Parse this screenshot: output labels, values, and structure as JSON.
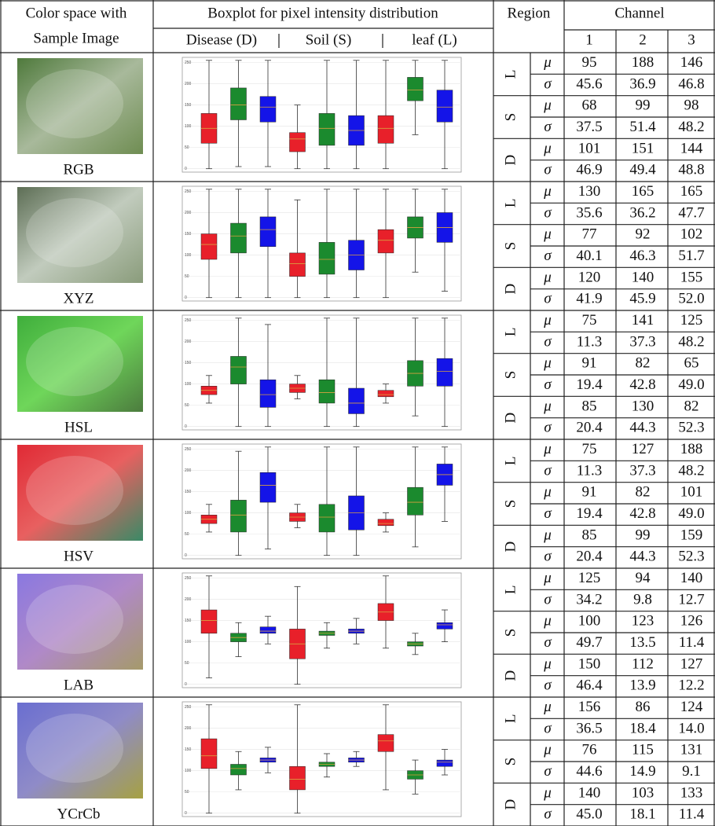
{
  "header": {
    "col1": [
      "Color space with",
      "Sample Image"
    ],
    "boxplot_title": "Boxplot for pixel intensity distribution",
    "boxplot_groups": [
      "Disease (D)",
      "Soil (S)",
      "leaf (L)"
    ],
    "region": "Region",
    "channel": "Channel",
    "channels": [
      "1",
      "2",
      "3"
    ]
  },
  "symbols": {
    "mu": "μ",
    "sigma": "σ"
  },
  "boxplot_ylim": [
    -8,
    262
  ],
  "boxplot_yticks": [
    0,
    50,
    100,
    150,
    200,
    250
  ],
  "box_colors": [
    "#e8202a",
    "#1b8a2e",
    "#1414e8"
  ],
  "rows": [
    {
      "name": "RGB",
      "regions": [
        {
          "label": "L",
          "mu": [
            "95",
            "188",
            "146"
          ],
          "sigma": [
            "45.6",
            "36.9",
            "46.8"
          ]
        },
        {
          "label": "S",
          "mu": [
            "68",
            "99",
            "98"
          ],
          "sigma": [
            "37.5",
            "51.4",
            "48.2"
          ]
        },
        {
          "label": "D",
          "mu": [
            "101",
            "151",
            "144"
          ],
          "sigma": [
            "46.9",
            "49.4",
            "48.8"
          ]
        }
      ],
      "boxes": [
        [
          0,
          60,
          95,
          130,
          255
        ],
        [
          5,
          115,
          150,
          190,
          255
        ],
        [
          5,
          110,
          145,
          170,
          255
        ],
        [
          0,
          40,
          70,
          85,
          150
        ],
        [
          0,
          55,
          95,
          130,
          255
        ],
        [
          0,
          55,
          90,
          125,
          255
        ],
        [
          0,
          60,
          95,
          125,
          255
        ],
        [
          80,
          160,
          185,
          215,
          255
        ],
        [
          0,
          110,
          145,
          185,
          255
        ]
      ]
    },
    {
      "name": "XYZ",
      "regions": [
        {
          "label": "L",
          "mu": [
            "130",
            "165",
            "165"
          ],
          "sigma": [
            "35.6",
            "36.2",
            "47.7"
          ]
        },
        {
          "label": "S",
          "mu": [
            "77",
            "92",
            "102"
          ],
          "sigma": [
            "40.1",
            "46.3",
            "51.7"
          ]
        },
        {
          "label": "D",
          "mu": [
            "120",
            "140",
            "155"
          ],
          "sigma": [
            "41.9",
            "45.9",
            "52.0"
          ]
        }
      ],
      "boxes": [
        [
          0,
          90,
          125,
          150,
          255
        ],
        [
          0,
          105,
          145,
          175,
          255
        ],
        [
          0,
          120,
          160,
          190,
          255
        ],
        [
          0,
          50,
          80,
          105,
          230
        ],
        [
          0,
          55,
          90,
          130,
          255
        ],
        [
          0,
          65,
          100,
          135,
          255
        ],
        [
          0,
          105,
          135,
          160,
          255
        ],
        [
          60,
          140,
          165,
          190,
          255
        ],
        [
          15,
          130,
          165,
          200,
          255
        ]
      ]
    },
    {
      "name": "HSL",
      "regions": [
        {
          "label": "L",
          "mu": [
            "75",
            "141",
            "125"
          ],
          "sigma": [
            "11.3",
            "37.3",
            "48.2"
          ]
        },
        {
          "label": "S",
          "mu": [
            "91",
            "82",
            "65"
          ],
          "sigma": [
            "19.4",
            "42.8",
            "49.0"
          ]
        },
        {
          "label": "D",
          "mu": [
            "85",
            "130",
            "82"
          ],
          "sigma": [
            "20.4",
            "44.3",
            "52.3"
          ]
        }
      ],
      "boxes": [
        [
          55,
          75,
          85,
          95,
          120
        ],
        [
          0,
          100,
          140,
          165,
          255
        ],
        [
          0,
          45,
          75,
          110,
          240
        ],
        [
          65,
          80,
          90,
          100,
          120
        ],
        [
          0,
          55,
          80,
          110,
          255
        ],
        [
          0,
          30,
          55,
          90,
          255
        ],
        [
          55,
          70,
          75,
          85,
          100
        ],
        [
          25,
          95,
          125,
          155,
          255
        ],
        [
          0,
          95,
          130,
          160,
          255
        ]
      ]
    },
    {
      "name": "HSV",
      "regions": [
        {
          "label": "L",
          "mu": [
            "75",
            "127",
            "188"
          ],
          "sigma": [
            "11.3",
            "37.3",
            "48.2"
          ]
        },
        {
          "label": "S",
          "mu": [
            "91",
            "82",
            "101"
          ],
          "sigma": [
            "19.4",
            "42.8",
            "49.0"
          ]
        },
        {
          "label": "D",
          "mu": [
            "85",
            "99",
            "159"
          ],
          "sigma": [
            "20.4",
            "44.3",
            "52.3"
          ]
        }
      ],
      "boxes": [
        [
          55,
          75,
          85,
          95,
          120
        ],
        [
          0,
          55,
          95,
          130,
          245
        ],
        [
          15,
          125,
          165,
          195,
          255
        ],
        [
          65,
          80,
          90,
          100,
          120
        ],
        [
          0,
          55,
          90,
          120,
          255
        ],
        [
          0,
          60,
          100,
          140,
          255
        ],
        [
          55,
          70,
          75,
          85,
          100
        ],
        [
          20,
          95,
          125,
          160,
          255
        ],
        [
          80,
          165,
          190,
          215,
          255
        ]
      ]
    },
    {
      "name": "LAB",
      "regions": [
        {
          "label": "L",
          "mu": [
            "125",
            "94",
            "140"
          ],
          "sigma": [
            "34.2",
            "9.8",
            "12.7"
          ]
        },
        {
          "label": "S",
          "mu": [
            "100",
            "123",
            "126"
          ],
          "sigma": [
            "49.7",
            "13.5",
            "11.4"
          ]
        },
        {
          "label": "D",
          "mu": [
            "150",
            "112",
            "127"
          ],
          "sigma": [
            "46.4",
            "13.9",
            "12.2"
          ]
        }
      ],
      "boxes": [
        [
          15,
          120,
          150,
          175,
          255
        ],
        [
          65,
          100,
          110,
          120,
          145
        ],
        [
          95,
          120,
          125,
          135,
          160
        ],
        [
          0,
          60,
          95,
          130,
          230
        ],
        [
          85,
          115,
          120,
          125,
          145
        ],
        [
          95,
          120,
          125,
          130,
          155
        ],
        [
          85,
          150,
          170,
          190,
          255
        ],
        [
          70,
          90,
          95,
          100,
          120
        ],
        [
          100,
          130,
          140,
          145,
          175
        ]
      ]
    },
    {
      "name": "YCrCb",
      "regions": [
        {
          "label": "L",
          "mu": [
            "156",
            "86",
            "124"
          ],
          "sigma": [
            "36.5",
            "18.4",
            "14.0"
          ]
        },
        {
          "label": "S",
          "mu": [
            "76",
            "115",
            "131"
          ],
          "sigma": [
            "44.6",
            "14.9",
            "9.1"
          ]
        },
        {
          "label": "D",
          "mu": [
            "140",
            "103",
            "133"
          ],
          "sigma": [
            "45.0",
            "18.1",
            "11.4"
          ]
        }
      ],
      "boxes": [
        [
          0,
          105,
          135,
          175,
          255
        ],
        [
          55,
          90,
          105,
          115,
          145
        ],
        [
          95,
          120,
          125,
          130,
          155
        ],
        [
          0,
          55,
          80,
          110,
          255
        ],
        [
          85,
          110,
          115,
          120,
          140
        ],
        [
          110,
          120,
          125,
          130,
          145
        ],
        [
          55,
          145,
          170,
          185,
          255
        ],
        [
          45,
          80,
          90,
          100,
          125
        ],
        [
          90,
          110,
          120,
          125,
          150
        ]
      ]
    }
  ]
}
